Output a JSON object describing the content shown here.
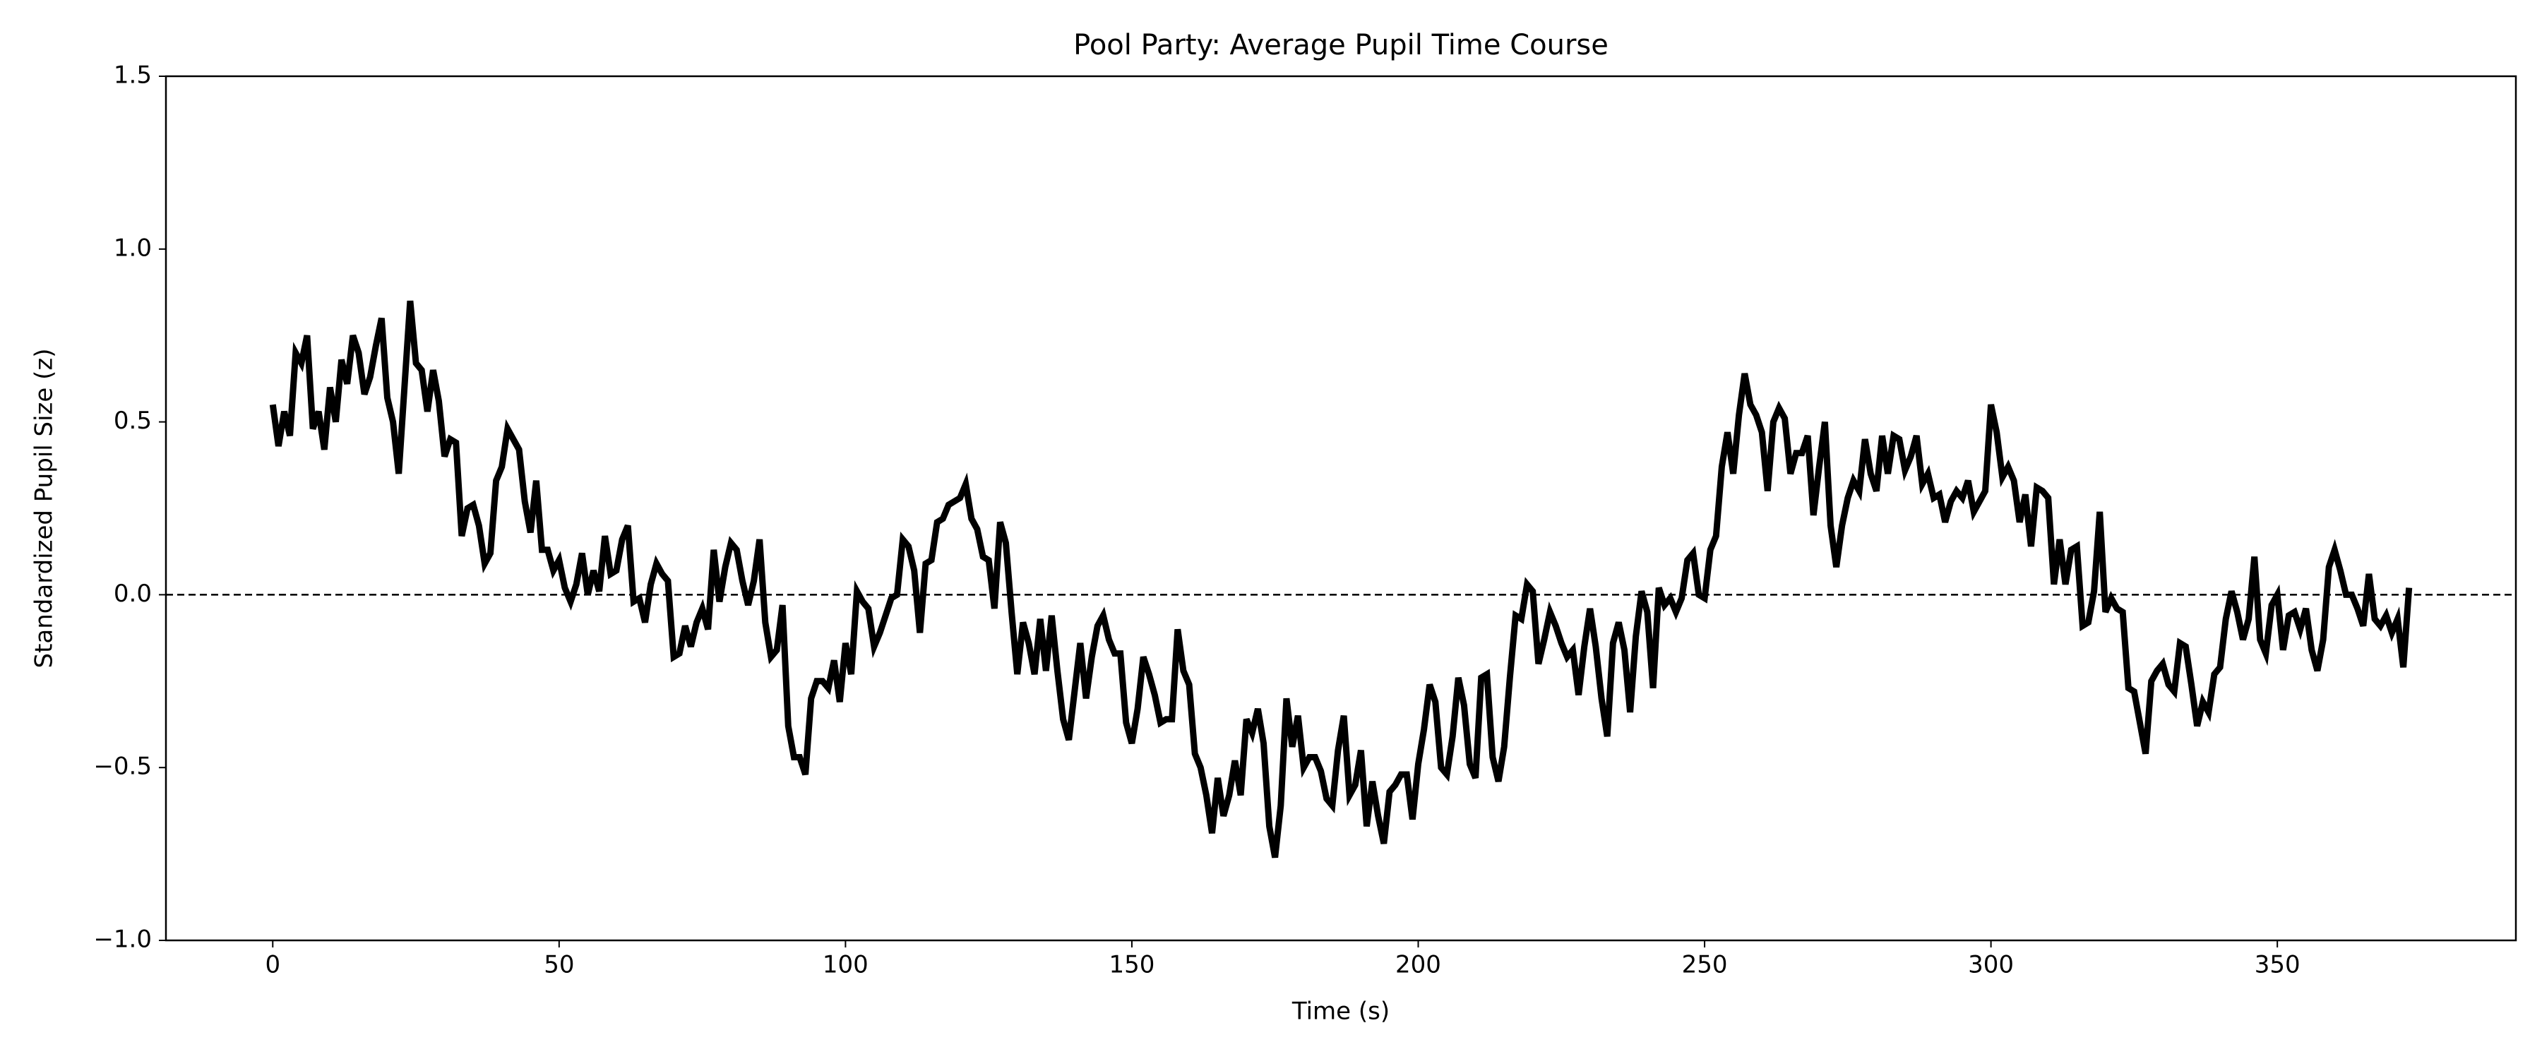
{
  "chart_data": {
    "type": "line",
    "title": "Pool Party: Average Pupil Time Course",
    "xlabel": "Time (s)",
    "ylabel": "Standardized Pupil Size (z)",
    "color": "#000000",
    "hline": 0,
    "xlim": [
      -18.65,
      391.65
    ],
    "ylim": [
      -1.0,
      1.5
    ],
    "xticks": [
      0,
      50,
      100,
      150,
      200,
      250,
      300,
      350
    ],
    "yticks": [
      {
        "value": -1.0,
        "label": "−1.0"
      },
      {
        "value": -0.5,
        "label": "−0.5"
      },
      {
        "value": 0.0,
        "label": "0.0"
      },
      0.5,
      {
        "value": 1.0,
        "label": "1.0"
      },
      1.5
    ],
    "x": [
      0,
      1,
      2,
      3,
      4,
      5,
      6,
      7,
      8,
      9,
      10,
      11,
      12,
      13,
      14,
      15,
      16,
      17,
      18,
      19,
      20,
      21,
      22,
      23,
      24,
      25,
      26,
      27,
      28,
      29,
      30,
      31,
      32,
      33,
      34,
      35,
      36,
      37,
      38,
      39,
      40,
      41,
      42,
      43,
      44,
      45,
      46,
      47,
      48,
      49,
      50,
      51,
      52,
      53,
      54,
      55,
      56,
      57,
      58,
      59,
      60,
      61,
      62,
      63,
      64,
      65,
      66,
      67,
      68,
      69,
      70,
      71,
      72,
      73,
      74,
      75,
      76,
      77,
      78,
      79,
      80,
      81,
      82,
      83,
      84,
      85,
      86,
      87,
      88,
      89,
      90,
      91,
      92,
      93,
      94,
      95,
      96,
      97,
      98,
      99,
      100,
      101,
      102,
      103,
      104,
      105,
      106,
      107,
      108,
      109,
      110,
      111,
      112,
      113,
      114,
      115,
      116,
      117,
      118,
      119,
      120,
      121,
      122,
      123,
      124,
      125,
      126,
      127,
      128,
      129,
      130,
      131,
      132,
      133,
      134,
      135,
      136,
      137,
      138,
      139,
      140,
      141,
      142,
      143,
      144,
      145,
      146,
      147,
      148,
      149,
      150,
      151,
      152,
      153,
      154,
      155,
      156,
      157,
      158,
      159,
      160,
      161,
      162,
      163,
      164,
      165,
      166,
      167,
      168,
      169,
      170,
      171,
      172,
      173,
      174,
      175,
      176,
      177,
      178,
      179,
      180,
      181,
      182,
      183,
      184,
      185,
      186,
      187,
      188,
      189,
      190,
      191,
      192,
      193,
      194,
      195,
      196,
      197,
      198,
      199,
      200,
      201,
      202,
      203,
      204,
      205,
      206,
      207,
      208,
      209,
      210,
      211,
      212,
      213,
      214,
      215,
      216,
      217,
      218,
      219,
      220,
      221,
      222,
      223,
      224,
      225,
      226,
      227,
      228,
      229,
      230,
      231,
      232,
      233,
      234,
      235,
      236,
      237,
      238,
      239,
      240,
      241,
      242,
      243,
      244,
      245,
      246,
      247,
      248,
      249,
      250,
      251,
      252,
      253,
      254,
      255,
      256,
      257,
      258,
      259,
      260,
      261,
      262,
      263,
      264,
      265,
      266,
      267,
      268,
      269,
      270,
      271,
      272,
      273,
      274,
      275,
      276,
      277,
      278,
      279,
      280,
      281,
      282,
      283,
      284,
      285,
      286,
      287,
      288,
      289,
      290,
      291,
      292,
      293,
      294,
      295,
      296,
      297,
      298,
      299,
      300,
      301,
      302,
      303,
      304,
      305,
      306,
      307,
      308,
      309,
      310,
      311,
      312,
      313,
      314,
      315,
      316,
      317,
      318,
      319,
      320,
      321,
      322,
      323,
      324,
      325,
      326,
      327,
      328,
      329,
      330,
      331,
      332,
      333,
      334,
      335,
      336,
      337,
      338,
      339,
      340,
      341,
      342,
      343,
      344,
      345,
      346,
      347,
      348,
      349,
      350,
      351,
      352,
      353,
      354,
      355,
      356,
      357,
      358,
      359,
      360,
      361,
      362,
      363,
      364,
      365,
      366,
      367,
      368,
      369,
      370,
      371,
      372,
      373
    ],
    "values": [
      0.55,
      0.43,
      0.53,
      0.46,
      0.7,
      0.67,
      0.75,
      0.48,
      0.53,
      0.42,
      0.6,
      0.5,
      0.68,
      0.61,
      0.75,
      0.7,
      0.58,
      0.63,
      0.72,
      0.8,
      0.57,
      0.5,
      0.35,
      0.6,
      0.85,
      0.67,
      0.65,
      0.53,
      0.65,
      0.56,
      0.4,
      0.45,
      0.44,
      0.17,
      0.25,
      0.26,
      0.2,
      0.09,
      0.12,
      0.33,
      0.37,
      0.48,
      0.45,
      0.42,
      0.27,
      0.18,
      0.33,
      0.13,
      0.13,
      0.07,
      0.1,
      0.02,
      -0.02,
      0.03,
      0.12,
      0.0,
      0.07,
      0.01,
      0.17,
      0.06,
      0.07,
      0.16,
      0.2,
      -0.02,
      -0.01,
      -0.08,
      0.03,
      0.09,
      0.06,
      0.04,
      -0.18,
      -0.17,
      -0.09,
      -0.15,
      -0.08,
      -0.04,
      -0.1,
      0.13,
      -0.02,
      0.08,
      0.15,
      0.13,
      0.04,
      -0.03,
      0.04,
      0.16,
      -0.08,
      -0.18,
      -0.16,
      -0.03,
      -0.38,
      -0.47,
      -0.47,
      -0.52,
      -0.3,
      -0.25,
      -0.25,
      -0.27,
      -0.19,
      -0.31,
      -0.14,
      -0.23,
      0.01,
      -0.02,
      -0.04,
      -0.15,
      -0.11,
      -0.06,
      -0.01,
      0.0,
      0.16,
      0.14,
      0.07,
      -0.11,
      0.09,
      0.1,
      0.21,
      0.22,
      0.26,
      0.27,
      0.28,
      0.32,
      0.22,
      0.19,
      0.11,
      0.1,
      -0.04,
      0.21,
      0.15,
      -0.05,
      -0.23,
      -0.08,
      -0.14,
      -0.23,
      -0.07,
      -0.22,
      -0.06,
      -0.22,
      -0.36,
      -0.42,
      -0.28,
      -0.14,
      -0.3,
      -0.18,
      -0.09,
      -0.06,
      -0.13,
      -0.17,
      -0.17,
      -0.37,
      -0.43,
      -0.33,
      -0.18,
      -0.23,
      -0.29,
      -0.37,
      -0.36,
      -0.36,
      -0.1,
      -0.22,
      -0.26,
      -0.46,
      -0.5,
      -0.58,
      -0.69,
      -0.53,
      -0.64,
      -0.58,
      -0.48,
      -0.58,
      -0.36,
      -0.4,
      -0.33,
      -0.43,
      -0.67,
      -0.76,
      -0.61,
      -0.3,
      -0.44,
      -0.35,
      -0.5,
      -0.47,
      -0.47,
      -0.51,
      -0.59,
      -0.61,
      -0.45,
      -0.35,
      -0.58,
      -0.55,
      -0.45,
      -0.67,
      -0.54,
      -0.64,
      -0.72,
      -0.57,
      -0.55,
      -0.52,
      -0.52,
      -0.65,
      -0.49,
      -0.39,
      -0.26,
      -0.31,
      -0.5,
      -0.52,
      -0.41,
      -0.24,
      -0.32,
      -0.49,
      -0.53,
      -0.24,
      -0.23,
      -0.47,
      -0.54,
      -0.44,
      -0.24,
      -0.06,
      -0.07,
      0.03,
      0.01,
      -0.2,
      -0.13,
      -0.05,
      -0.09,
      -0.14,
      -0.18,
      -0.16,
      -0.29,
      -0.15,
      -0.04,
      -0.15,
      -0.3,
      -0.41,
      -0.14,
      -0.08,
      -0.16,
      -0.34,
      -0.12,
      0.01,
      -0.05,
      -0.27,
      0.02,
      -0.03,
      -0.01,
      -0.05,
      -0.01,
      0.1,
      0.12,
      0.0,
      -0.01,
      0.13,
      0.17,
      0.37,
      0.47,
      0.35,
      0.52,
      0.64,
      0.55,
      0.52,
      0.47,
      0.3,
      0.5,
      0.54,
      0.51,
      0.35,
      0.41,
      0.41,
      0.46,
      0.23,
      0.37,
      0.5,
      0.2,
      0.08,
      0.2,
      0.28,
      0.33,
      0.3,
      0.45,
      0.35,
      0.3,
      0.46,
      0.35,
      0.46,
      0.45,
      0.36,
      0.4,
      0.46,
      0.32,
      0.35,
      0.28,
      0.29,
      0.21,
      0.27,
      0.3,
      0.28,
      0.33,
      0.24,
      0.27,
      0.3,
      0.55,
      0.47,
      0.34,
      0.37,
      0.33,
      0.21,
      0.29,
      0.14,
      0.31,
      0.3,
      0.28,
      0.03,
      0.16,
      0.03,
      0.13,
      0.14,
      -0.09,
      -0.08,
      0.01,
      0.24,
      -0.05,
      -0.01,
      -0.04,
      -0.05,
      -0.27,
      -0.28,
      -0.37,
      -0.46,
      -0.25,
      -0.22,
      -0.2,
      -0.26,
      -0.28,
      -0.14,
      -0.15,
      -0.26,
      -0.38,
      -0.31,
      -0.34,
      -0.23,
      -0.21,
      -0.07,
      0.01,
      -0.05,
      -0.13,
      -0.07,
      0.11,
      -0.13,
      -0.17,
      -0.03,
      0.0,
      -0.16,
      -0.06,
      -0.05,
      -0.1,
      -0.04,
      -0.16,
      -0.22,
      -0.13,
      0.08,
      0.13,
      0.07,
      0.0,
      0.0,
      -0.04,
      -0.09,
      0.06,
      -0.07,
      -0.09,
      -0.06,
      -0.11,
      -0.07,
      -0.21,
      0.02
    ]
  }
}
